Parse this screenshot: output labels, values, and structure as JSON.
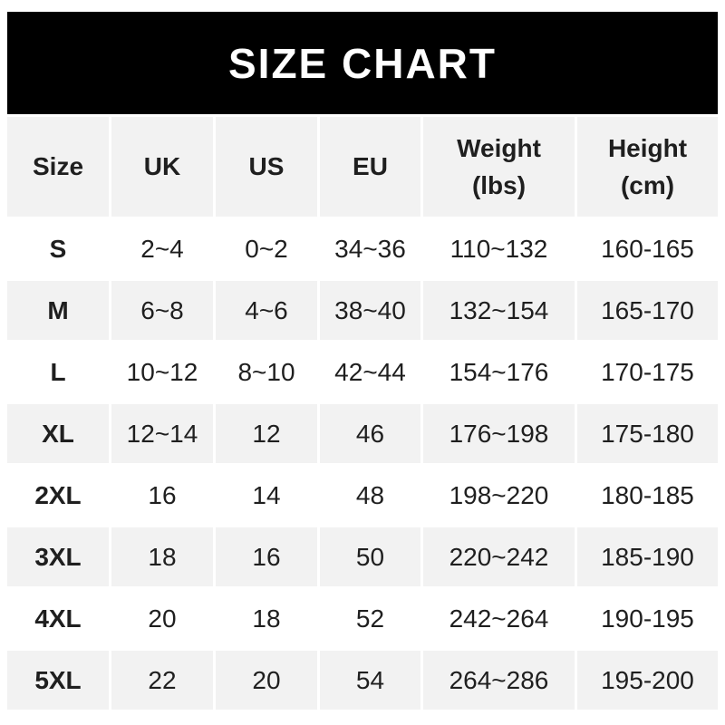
{
  "banner": {
    "title": "SIZE CHART"
  },
  "header": {
    "size": "Size",
    "uk": "UK",
    "us": "US",
    "eu": "EU",
    "weight_line1": "Weight",
    "weight_line2": "(lbs)",
    "height_line1": "Height",
    "height_line2": "(cm)"
  },
  "colors": {
    "banner_bg": "#000000",
    "banner_text": "#ffffff",
    "alt_row_bg": "#f2f2f2",
    "row_bg": "#ffffff",
    "text": "#1f1f1f",
    "page_bg": "#ffffff"
  },
  "chart_data": {
    "type": "table",
    "title": "SIZE CHART",
    "columns": [
      "Size",
      "UK",
      "US",
      "EU",
      "Weight (lbs)",
      "Height (cm)"
    ],
    "rows": [
      [
        "S",
        "2~4",
        "0~2",
        "34~36",
        "110~132",
        "160-165"
      ],
      [
        "M",
        "6~8",
        "4~6",
        "38~40",
        "132~154",
        "165-170"
      ],
      [
        "L",
        "10~12",
        "8~10",
        "42~44",
        "154~176",
        "170-175"
      ],
      [
        "XL",
        "12~14",
        "12",
        "46",
        "176~198",
        "175-180"
      ],
      [
        "2XL",
        "16",
        "14",
        "48",
        "198~220",
        "180-185"
      ],
      [
        "3XL",
        "18",
        "16",
        "50",
        "220~242",
        "185-190"
      ],
      [
        "4XL",
        "20",
        "18",
        "52",
        "242~264",
        "190-195"
      ],
      [
        "5XL",
        "22",
        "20",
        "54",
        "264~286",
        "195-200"
      ]
    ],
    "layout": {
      "shaded_rows": [
        "header",
        "M",
        "XL",
        "3XL",
        "5XL"
      ],
      "grid": "3px white gutters between all cells"
    }
  }
}
